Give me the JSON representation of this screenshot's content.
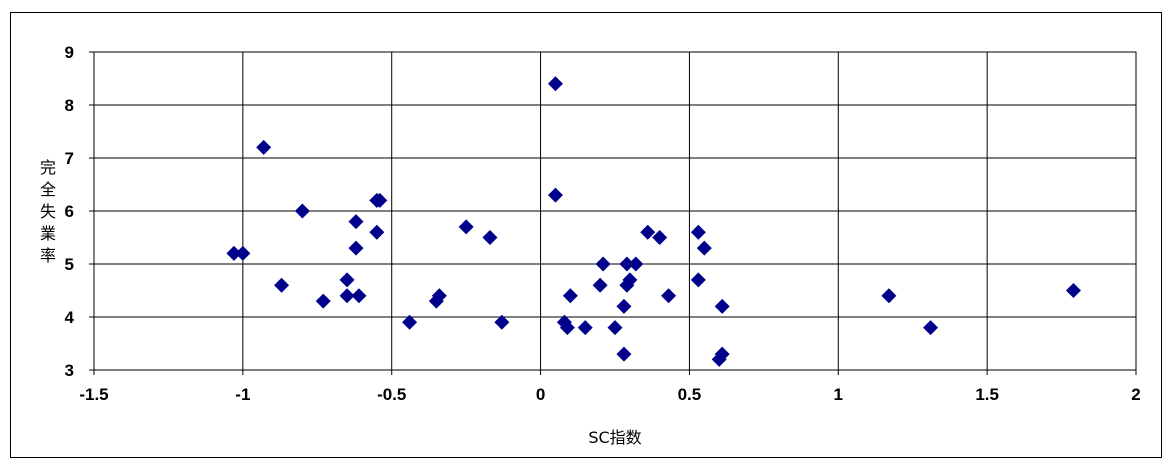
{
  "chart_data": {
    "type": "scatter",
    "title": "",
    "xlabel": "SC指数",
    "ylabel": "完全失業率",
    "xlim": [
      -1.5,
      2
    ],
    "ylim": [
      3,
      9
    ],
    "x_ticks": [
      "-1.5",
      "-1",
      "-0.5",
      "0",
      "0.5",
      "1",
      "1.5",
      "2"
    ],
    "y_ticks": [
      "3",
      "4",
      "5",
      "6",
      "7",
      "8",
      "9"
    ],
    "grid": "vertical and horizontal major gridlines",
    "legend": "none",
    "marker": "diamond",
    "color": "#00008B",
    "points": [
      {
        "x": -1.03,
        "y": 5.2
      },
      {
        "x": -1.0,
        "y": 5.2
      },
      {
        "x": -0.93,
        "y": 7.2
      },
      {
        "x": -0.87,
        "y": 4.6
      },
      {
        "x": -0.8,
        "y": 6.0
      },
      {
        "x": -0.73,
        "y": 4.3
      },
      {
        "x": -0.65,
        "y": 4.7
      },
      {
        "x": -0.65,
        "y": 4.4
      },
      {
        "x": -0.62,
        "y": 5.8
      },
      {
        "x": -0.62,
        "y": 5.3
      },
      {
        "x": -0.61,
        "y": 4.4
      },
      {
        "x": -0.55,
        "y": 6.2
      },
      {
        "x": -0.54,
        "y": 6.2
      },
      {
        "x": -0.55,
        "y": 5.6
      },
      {
        "x": -0.44,
        "y": 3.9
      },
      {
        "x": -0.35,
        "y": 4.3
      },
      {
        "x": -0.34,
        "y": 4.4
      },
      {
        "x": -0.25,
        "y": 5.7
      },
      {
        "x": -0.17,
        "y": 5.5
      },
      {
        "x": -0.13,
        "y": 3.9
      },
      {
        "x": 0.05,
        "y": 8.4
      },
      {
        "x": 0.05,
        "y": 6.3
      },
      {
        "x": 0.08,
        "y": 3.9
      },
      {
        "x": 0.09,
        "y": 3.8
      },
      {
        "x": 0.1,
        "y": 4.4
      },
      {
        "x": 0.15,
        "y": 3.8
      },
      {
        "x": 0.2,
        "y": 4.6
      },
      {
        "x": 0.21,
        "y": 5.0
      },
      {
        "x": 0.25,
        "y": 3.8
      },
      {
        "x": 0.28,
        "y": 4.2
      },
      {
        "x": 0.28,
        "y": 3.3
      },
      {
        "x": 0.29,
        "y": 5.0
      },
      {
        "x": 0.29,
        "y": 4.6
      },
      {
        "x": 0.3,
        "y": 4.7
      },
      {
        "x": 0.32,
        "y": 5.0
      },
      {
        "x": 0.36,
        "y": 5.6
      },
      {
        "x": 0.4,
        "y": 5.5
      },
      {
        "x": 0.43,
        "y": 4.4
      },
      {
        "x": 0.53,
        "y": 5.6
      },
      {
        "x": 0.53,
        "y": 4.7
      },
      {
        "x": 0.55,
        "y": 5.3
      },
      {
        "x": 0.6,
        "y": 3.2
      },
      {
        "x": 0.61,
        "y": 3.3
      },
      {
        "x": 0.61,
        "y": 4.2
      },
      {
        "x": 1.17,
        "y": 4.4
      },
      {
        "x": 1.31,
        "y": 3.8
      },
      {
        "x": 1.79,
        "y": 4.5
      }
    ]
  }
}
